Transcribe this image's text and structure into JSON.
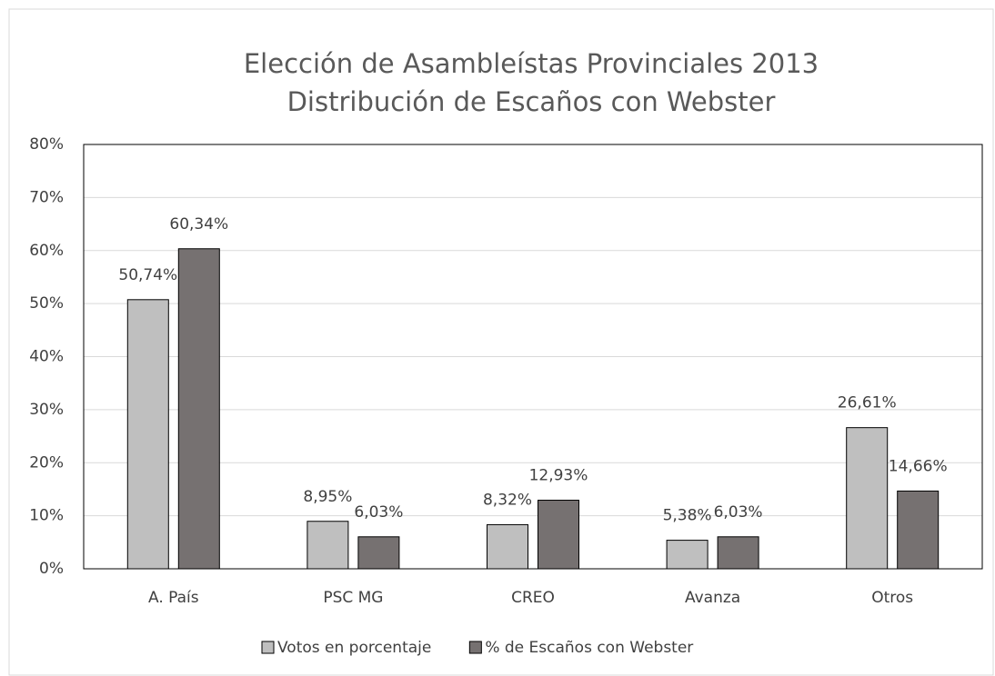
{
  "chart_data": {
    "type": "bar",
    "title": "Elección de Asambleístas Provinciales 2013",
    "subtitle": "Distribución de Escaños con Webster",
    "categories": [
      "A. País",
      "PSC MG",
      "CREO",
      "Avanza",
      "Otros"
    ],
    "series": [
      {
        "name": "Votos en porcentaje",
        "color": "#bfbfbf",
        "values": [
          50.74,
          8.95,
          8.32,
          5.38,
          26.61
        ],
        "value_labels": [
          "50,74%",
          "8,95%",
          "8,32%",
          "5,38%",
          "26,61%"
        ]
      },
      {
        "name": "% de Escaños con Webster",
        "color": "#767171",
        "values": [
          60.34,
          6.03,
          12.93,
          6.03,
          14.66
        ],
        "value_labels": [
          "60,34%",
          "6,03%",
          "12,93%",
          "6,03%",
          "14,66%"
        ]
      }
    ],
    "ylim": [
      0,
      80
    ],
    "yticks": [
      {
        "value": 0,
        "label": "0%"
      },
      {
        "value": 10,
        "label": "10%"
      },
      {
        "value": 20,
        "label": "20%"
      },
      {
        "value": 30,
        "label": "30%"
      },
      {
        "value": 40,
        "label": "40%"
      },
      {
        "value": 50,
        "label": "50%"
      },
      {
        "value": 60,
        "label": "60%"
      },
      {
        "value": 70,
        "label": "70%"
      },
      {
        "value": 80,
        "label": "80%"
      }
    ],
    "grid": true,
    "legend": "bottom"
  }
}
